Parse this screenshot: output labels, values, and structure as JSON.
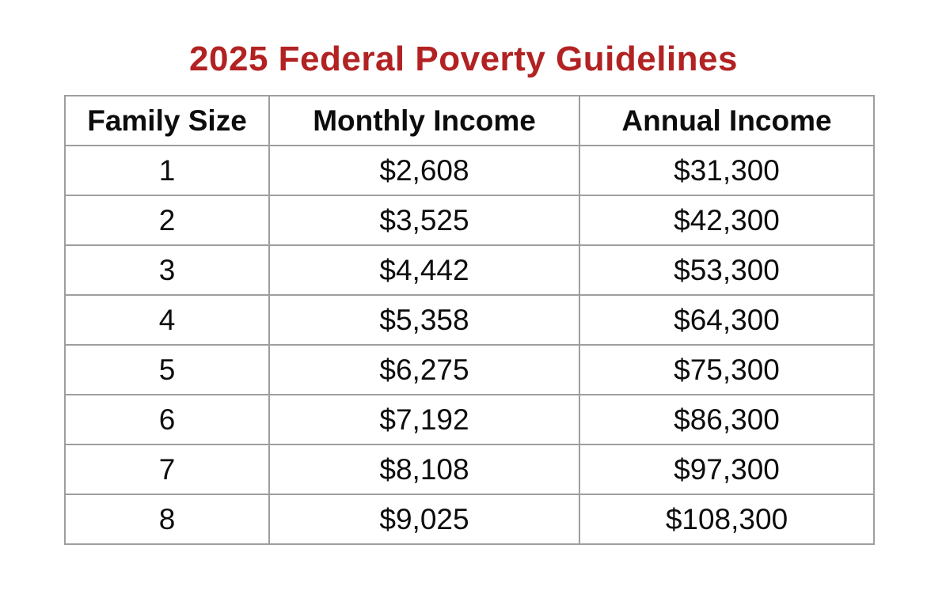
{
  "page": {
    "title": "2025 Federal Poverty Guidelines"
  },
  "colors": {
    "title_red": "#B22222",
    "table_border_gray": "#9e9e9e",
    "text_black": "#0d0d0d",
    "background": "#ffffff"
  },
  "table": {
    "columns": [
      "Family Size",
      "Monthly Income",
      "Annual Income"
    ],
    "rows": [
      {
        "family_size": "1",
        "monthly_income": "$2,608",
        "annual_income": "$31,300"
      },
      {
        "family_size": "2",
        "monthly_income": "$3,525",
        "annual_income": "$42,300"
      },
      {
        "family_size": "3",
        "monthly_income": "$4,442",
        "annual_income": "$53,300"
      },
      {
        "family_size": "4",
        "monthly_income": "$5,358",
        "annual_income": "$64,300"
      },
      {
        "family_size": "5",
        "monthly_income": "$6,275",
        "annual_income": "$75,300"
      },
      {
        "family_size": "6",
        "monthly_income": "$7,192",
        "annual_income": "$86,300"
      },
      {
        "family_size": "7",
        "monthly_income": "$8,108",
        "annual_income": "$97,300"
      },
      {
        "family_size": "8",
        "monthly_income": "$9,025",
        "annual_income": "$108,300"
      }
    ]
  }
}
